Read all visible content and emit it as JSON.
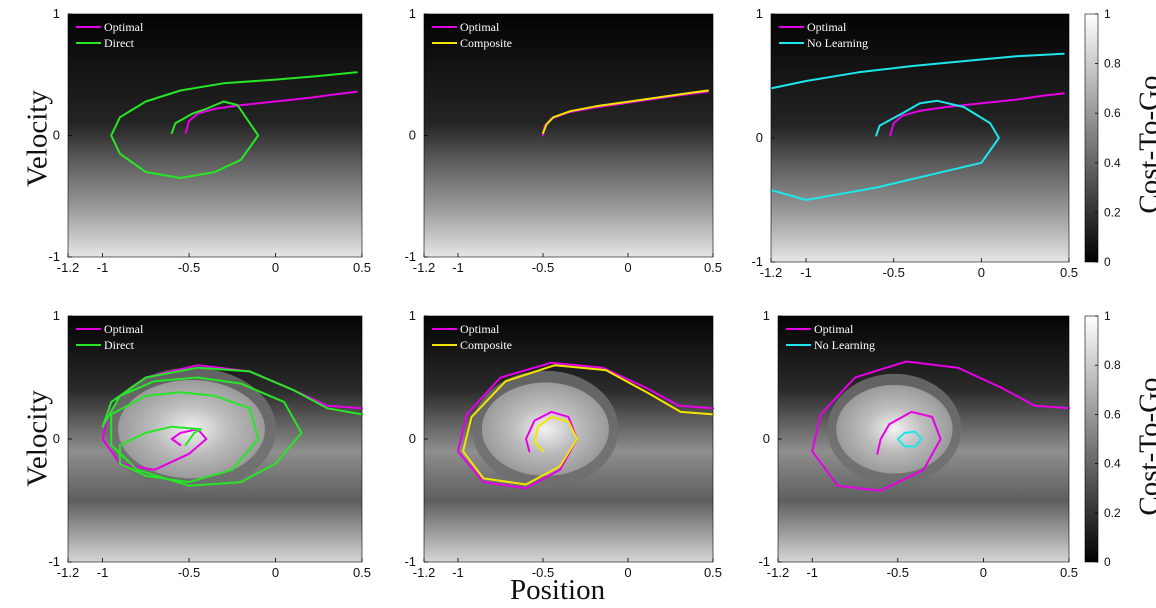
{
  "figure": {
    "xlabel": "Position",
    "ylabel": "Velocity",
    "colorbar_label": "Cost-To-Go"
  },
  "colors": {
    "Optimal": "#e600e6",
    "Direct": "#26e626",
    "Composite": "#f2e600",
    "No Learning": "#1ee6ec"
  },
  "chart_data": [
    {
      "type": "line",
      "panel": "row1-col1",
      "background": "heatmap (grayscale cost-to-go)",
      "xlim": [
        -1.2,
        0.5
      ],
      "ylim": [
        -1,
        1
      ],
      "xticks": [
        "-1.2",
        "-1",
        "-0.5",
        "0",
        "0.5"
      ],
      "yticks": [
        "-1",
        "0",
        "1"
      ],
      "legend_position": "top-left",
      "series": [
        {
          "name": "Optimal",
          "x": [
            -0.52,
            -0.5,
            -0.45,
            -0.35,
            -0.2,
            0,
            0.2,
            0.35,
            0.47
          ],
          "y": [
            0.02,
            0.12,
            0.18,
            0.22,
            0.25,
            0.28,
            0.31,
            0.34,
            0.36
          ]
        },
        {
          "name": "Direct",
          "x": [
            -0.6,
            -0.58,
            -0.48,
            -0.4,
            -0.3,
            -0.22,
            -0.1,
            -0.2,
            -0.35,
            -0.55,
            -0.75,
            -0.9,
            -0.95,
            -0.9,
            -0.75,
            -0.55,
            -0.3,
            0,
            0.25,
            0.47
          ],
          "y": [
            0.02,
            0.1,
            0.18,
            0.22,
            0.28,
            0.25,
            0,
            -0.2,
            -0.3,
            -0.35,
            -0.3,
            -0.15,
            0,
            0.15,
            0.28,
            0.37,
            0.43,
            0.46,
            0.49,
            0.52
          ]
        }
      ]
    },
    {
      "type": "line",
      "panel": "row1-col2",
      "background": "heatmap (grayscale cost-to-go)",
      "xlim": [
        -1.2,
        0.5
      ],
      "ylim": [
        -1,
        1
      ],
      "xticks": [
        "-1.2",
        "-1",
        "-0.5",
        "0",
        "0.5"
      ],
      "yticks": [
        "-1",
        "0",
        "1"
      ],
      "legend_position": "top-left",
      "series": [
        {
          "name": "Optimal",
          "x": [
            -0.5,
            -0.49,
            -0.45,
            -0.35,
            -0.2,
            0,
            0.2,
            0.35,
            0.47
          ],
          "y": [
            0.0,
            0.08,
            0.14,
            0.19,
            0.23,
            0.27,
            0.31,
            0.34,
            0.36
          ]
        },
        {
          "name": "Composite",
          "x": [
            -0.5,
            -0.48,
            -0.44,
            -0.34,
            -0.19,
            0.01,
            0.21,
            0.36,
            0.47
          ],
          "y": [
            0.02,
            0.09,
            0.15,
            0.2,
            0.24,
            0.28,
            0.32,
            0.35,
            0.37
          ]
        }
      ]
    },
    {
      "type": "line",
      "panel": "row1-col3",
      "background": "heatmap (grayscale cost-to-go)",
      "xlim": [
        -1.2,
        0.5
      ],
      "ylim": [
        -1,
        1
      ],
      "xticks": [
        "-1.2",
        "-1",
        "-0.5",
        "0",
        "0.5"
      ],
      "yticks": [
        "-1",
        "0",
        "1"
      ],
      "legend_position": "top-left",
      "colorbar": {
        "range": [
          0,
          1
        ],
        "ticks": [
          "0",
          "0.2",
          "0.4",
          "0.6",
          "0.8",
          "1"
        ]
      },
      "series": [
        {
          "name": "Optimal",
          "x": [
            -0.52,
            -0.5,
            -0.45,
            -0.35,
            -0.2,
            0,
            0.2,
            0.35,
            0.47
          ],
          "y": [
            0.02,
            0.12,
            0.18,
            0.22,
            0.25,
            0.28,
            0.31,
            0.34,
            0.36
          ]
        },
        {
          "name": "No Learning",
          "x": [
            -0.6,
            -0.58,
            -0.45,
            -0.35,
            -0.25,
            -0.1,
            0.05,
            0.1,
            0,
            -0.3,
            -0.6,
            -1.0,
            -1.2
          ],
          "y": [
            0.02,
            0.1,
            0.2,
            0.28,
            0.3,
            0.25,
            0.12,
            0,
            -0.2,
            -0.3,
            -0.4,
            -0.5,
            -0.42
          ]
        },
        {
          "name": "No Learning",
          "x": [
            -1.2,
            -1.0,
            -0.7,
            -0.4,
            -0.1,
            0.2,
            0.47
          ],
          "y": [
            0.4,
            0.46,
            0.53,
            0.58,
            0.62,
            0.66,
            0.68
          ]
        }
      ]
    },
    {
      "type": "line",
      "panel": "row2-col1",
      "background": "heatmap (grayscale cost-to-go)",
      "xlim": [
        -1.2,
        0.5
      ],
      "ylim": [
        -1,
        1
      ],
      "xticks": [
        "-1.2",
        "-1",
        "-0.5",
        "0",
        "0.5"
      ],
      "yticks": [
        "-1",
        "0",
        "1"
      ],
      "legend_position": "top-left",
      "series": [
        {
          "name": "Optimal",
          "x": [
            -0.55,
            -0.6,
            -0.55,
            -0.45,
            -0.4,
            -0.5,
            -0.7,
            -0.9,
            -1.0,
            -0.95,
            -0.75,
            -0.45,
            -0.15,
            0.1,
            0.3,
            0.5
          ],
          "y": [
            -0.05,
            0.0,
            0.05,
            0.08,
            0.0,
            -0.12,
            -0.25,
            -0.2,
            0.0,
            0.3,
            0.5,
            0.6,
            0.55,
            0.4,
            0.27,
            0.25
          ]
        },
        {
          "name": "Direct",
          "x": [
            -0.52,
            -0.47,
            -0.43,
            -0.6,
            -0.75,
            -0.9,
            -0.9,
            -0.75,
            -0.5,
            -0.25,
            -0.1,
            -0.15,
            -0.35,
            -0.55,
            -0.75,
            -0.95,
            -0.95,
            -0.8,
            -0.5,
            -0.2,
            0.0,
            0.15,
            0.05,
            -0.2,
            -0.45,
            -0.7,
            -0.9,
            -1.0,
            -0.95,
            -0.75,
            -0.45,
            -0.15,
            0.1,
            0.3,
            0.5
          ],
          "y": [
            -0.05,
            0.05,
            0.08,
            0.1,
            0.05,
            -0.05,
            -0.2,
            -0.3,
            -0.35,
            -0.25,
            0.0,
            0.25,
            0.35,
            0.38,
            0.35,
            0.2,
            -0.05,
            -0.25,
            -0.38,
            -0.35,
            -0.2,
            0.05,
            0.3,
            0.45,
            0.5,
            0.47,
            0.35,
            0.1,
            0.3,
            0.5,
            0.58,
            0.55,
            0.4,
            0.25,
            0.2
          ]
        }
      ]
    },
    {
      "type": "line",
      "panel": "row2-col2",
      "background": "heatmap (grayscale cost-to-go)",
      "xlim": [
        -1.2,
        0.5
      ],
      "ylim": [
        -1,
        1
      ],
      "xticks": [
        "-1.2",
        "-1",
        "-0.5",
        "0",
        "0.5"
      ],
      "yticks": [
        "-1",
        "0",
        "1"
      ],
      "legend_position": "top-left",
      "series": [
        {
          "name": "Optimal",
          "x": [
            -0.58,
            -0.6,
            -0.55,
            -0.45,
            -0.35,
            -0.3,
            -0.4,
            -0.6,
            -0.85,
            -1.0,
            -0.95,
            -0.75,
            -0.45,
            -0.15,
            0.1,
            0.3,
            0.5
          ],
          "y": [
            -0.1,
            0.0,
            0.15,
            0.22,
            0.18,
            0.0,
            -0.25,
            -0.4,
            -0.35,
            -0.1,
            0.2,
            0.5,
            0.62,
            0.58,
            0.42,
            0.27,
            0.25
          ]
        },
        {
          "name": "Composite",
          "x": [
            -0.5,
            -0.55,
            -0.53,
            -0.45,
            -0.35,
            -0.3,
            -0.4,
            -0.6,
            -0.85,
            -0.97,
            -0.92,
            -0.72,
            -0.43,
            -0.13,
            0.11,
            0.31,
            0.5
          ],
          "y": [
            -0.1,
            -0.02,
            0.1,
            0.18,
            0.14,
            0.0,
            -0.22,
            -0.37,
            -0.32,
            -0.1,
            0.18,
            0.47,
            0.6,
            0.56,
            0.38,
            0.22,
            0.2
          ]
        }
      ]
    },
    {
      "type": "line",
      "panel": "row2-col3",
      "background": "heatmap (grayscale cost-to-go)",
      "xlim": [
        -1.2,
        0.5
      ],
      "ylim": [
        -1,
        1
      ],
      "xticks": [
        "-1.2",
        "-1",
        "-0.5",
        "0",
        "0.5"
      ],
      "yticks": [
        "-1",
        "0",
        "1"
      ],
      "legend_position": "top-left",
      "colorbar": {
        "range": [
          0,
          1
        ],
        "ticks": [
          "0",
          "0.2",
          "0.4",
          "0.6",
          "0.8",
          "1"
        ]
      },
      "series": [
        {
          "name": "Optimal",
          "x": [
            -0.62,
            -0.6,
            -0.55,
            -0.42,
            -0.3,
            -0.25,
            -0.35,
            -0.6,
            -0.85,
            -1.0,
            -0.95,
            -0.75,
            -0.45,
            -0.15,
            0.1,
            0.3,
            0.5
          ],
          "y": [
            -0.12,
            0.0,
            0.12,
            0.22,
            0.18,
            0.0,
            -0.25,
            -0.42,
            -0.38,
            -0.1,
            0.2,
            0.5,
            0.63,
            0.58,
            0.42,
            0.27,
            0.25
          ]
        },
        {
          "name": "No Learning",
          "x": [
            -0.5,
            -0.46,
            -0.4,
            -0.36,
            -0.4,
            -0.46,
            -0.5
          ],
          "y": [
            0.0,
            0.05,
            0.06,
            0.0,
            -0.06,
            -0.06,
            0.0
          ]
        }
      ]
    }
  ]
}
